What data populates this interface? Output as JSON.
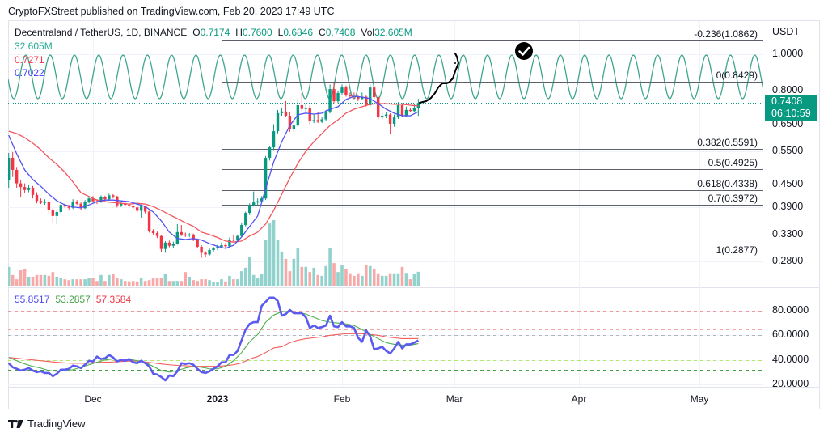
{
  "header": {
    "published": "CryptoFXStreet published on TradingView.com, Feb 20, 2023 17:49 UTC"
  },
  "legend": {
    "title": "Decentraland / TetherUS, 1D, BINANCE",
    "ohlc": [
      {
        "k": "O",
        "v": "0.7174"
      },
      {
        "k": "H",
        "v": "0.7600"
      },
      {
        "k": "L",
        "v": "0.6846"
      },
      {
        "k": "C",
        "v": "0.7408"
      },
      {
        "k": "Vol",
        "v": "32.605M"
      }
    ],
    "volume_value": "32.605M",
    "ma_red_value": "0.7271",
    "ma_blue_value": "0.7022"
  },
  "rsi_legend": {
    "rsi": "55.8517",
    "rsi_ma": "53.2857",
    "rsi_ma_long": "57.3584"
  },
  "price_axis": {
    "unit": "USDT",
    "ticks": [
      "1.0000",
      "0.8000",
      "0.6500",
      "0.5500",
      "0.4500",
      "0.3900",
      "0.3300",
      "0.2800"
    ],
    "last_price": "0.7408",
    "countdown": "06:10:59"
  },
  "rsi_axis": {
    "ticks": [
      "80.0000",
      "60.0000",
      "40.0000",
      "20.0000"
    ]
  },
  "time_axis": {
    "ticks": [
      {
        "label": "Dec",
        "date": "2022-12-01",
        "bold": false
      },
      {
        "label": "2023",
        "date": "2023-01-01",
        "bold": true
      },
      {
        "label": "Feb",
        "date": "2023-02-01",
        "bold": false
      },
      {
        "label": "Mar",
        "date": "2023-03-01",
        "bold": false
      },
      {
        "label": "Apr",
        "date": "2023-04-01",
        "bold": false
      },
      {
        "label": "May",
        "date": "2023-05-01",
        "bold": false
      }
    ]
  },
  "footer": {
    "brand": "TradingView"
  },
  "colors": {
    "up": "#089981",
    "down": "#f23645",
    "volume_up": "#92d2cc",
    "volume_down": "#f7a9a7",
    "ma_blue": "#5252f2",
    "ma_red": "#f2575f",
    "cycle": "#3fa58e",
    "fib": "#5d606b",
    "rsi": "#5b5bf0",
    "rsi_ma": "#4caf50",
    "rsi_ma_long": "#f45b5b",
    "grid": "#f0f3fa",
    "border": "#e0e3eb",
    "drawing": "#000000"
  },
  "chart_data": {
    "type": "candlestick",
    "interval": "1D",
    "x_start": "2022-11-10",
    "candles_ohlc": [
      [
        0.46,
        0.545,
        0.44,
        0.529
      ],
      [
        0.529,
        0.548,
        0.47,
        0.491
      ],
      [
        0.491,
        0.5,
        0.44,
        0.452
      ],
      [
        0.452,
        0.462,
        0.415,
        0.442
      ],
      [
        0.442,
        0.452,
        0.425,
        0.434
      ],
      [
        0.434,
        0.448,
        0.428,
        0.44
      ],
      [
        0.44,
        0.445,
        0.412,
        0.421
      ],
      [
        0.421,
        0.428,
        0.4,
        0.406
      ],
      [
        0.406,
        0.412,
        0.398,
        0.401
      ],
      [
        0.401,
        0.41,
        0.396,
        0.404
      ],
      [
        0.404,
        0.408,
        0.378,
        0.383
      ],
      [
        0.383,
        0.388,
        0.355,
        0.37
      ],
      [
        0.37,
        0.383,
        0.352,
        0.379
      ],
      [
        0.379,
        0.399,
        0.375,
        0.396
      ],
      [
        0.396,
        0.4,
        0.389,
        0.392
      ],
      [
        0.392,
        0.396,
        0.385,
        0.389
      ],
      [
        0.389,
        0.41,
        0.386,
        0.404
      ],
      [
        0.404,
        0.408,
        0.396,
        0.399
      ],
      [
        0.399,
        0.402,
        0.384,
        0.388
      ],
      [
        0.388,
        0.408,
        0.386,
        0.404
      ],
      [
        0.404,
        0.416,
        0.4,
        0.412
      ],
      [
        0.412,
        0.418,
        0.402,
        0.405
      ],
      [
        0.405,
        0.41,
        0.398,
        0.403
      ],
      [
        0.403,
        0.42,
        0.401,
        0.415
      ],
      [
        0.415,
        0.419,
        0.405,
        0.41
      ],
      [
        0.41,
        0.424,
        0.406,
        0.42
      ],
      [
        0.42,
        0.423,
        0.412,
        0.417
      ],
      [
        0.417,
        0.419,
        0.39,
        0.395
      ],
      [
        0.395,
        0.404,
        0.391,
        0.4
      ],
      [
        0.4,
        0.403,
        0.392,
        0.396
      ],
      [
        0.396,
        0.399,
        0.39,
        0.394
      ],
      [
        0.394,
        0.396,
        0.385,
        0.39
      ],
      [
        0.39,
        0.393,
        0.378,
        0.382
      ],
      [
        0.382,
        0.397,
        0.366,
        0.392
      ],
      [
        0.392,
        0.394,
        0.376,
        0.38
      ],
      [
        0.38,
        0.382,
        0.334,
        0.337
      ],
      [
        0.337,
        0.341,
        0.33,
        0.333
      ],
      [
        0.333,
        0.336,
        0.323,
        0.327
      ],
      [
        0.327,
        0.329,
        0.296,
        0.302
      ],
      [
        0.302,
        0.317,
        0.295,
        0.314
      ],
      [
        0.314,
        0.318,
        0.305,
        0.308
      ],
      [
        0.308,
        0.316,
        0.304,
        0.312
      ],
      [
        0.312,
        0.352,
        0.31,
        0.335
      ],
      [
        0.335,
        0.35,
        0.327,
        0.33
      ],
      [
        0.33,
        0.334,
        0.325,
        0.328
      ],
      [
        0.328,
        0.333,
        0.325,
        0.33
      ],
      [
        0.33,
        0.332,
        0.317,
        0.32
      ],
      [
        0.32,
        0.322,
        0.303,
        0.306
      ],
      [
        0.306,
        0.309,
        0.286,
        0.295
      ],
      [
        0.295,
        0.298,
        0.288,
        0.292
      ],
      [
        0.292,
        0.303,
        0.29,
        0.3
      ],
      [
        0.3,
        0.306,
        0.296,
        0.303
      ],
      [
        0.303,
        0.31,
        0.3,
        0.306
      ],
      [
        0.306,
        0.314,
        0.303,
        0.309
      ],
      [
        0.309,
        0.313,
        0.304,
        0.307
      ],
      [
        0.307,
        0.324,
        0.305,
        0.32
      ],
      [
        0.32,
        0.33,
        0.316,
        0.318
      ],
      [
        0.318,
        0.33,
        0.315,
        0.327
      ],
      [
        0.327,
        0.354,
        0.325,
        0.35
      ],
      [
        0.35,
        0.38,
        0.347,
        0.377
      ],
      [
        0.377,
        0.4,
        0.372,
        0.396
      ],
      [
        0.396,
        0.43,
        0.392,
        0.402
      ],
      [
        0.402,
        0.412,
        0.396,
        0.405
      ],
      [
        0.405,
        0.418,
        0.4,
        0.412
      ],
      [
        0.412,
        0.535,
        0.408,
        0.529
      ],
      [
        0.529,
        0.57,
        0.52,
        0.564
      ],
      [
        0.564,
        0.65,
        0.555,
        0.623
      ],
      [
        0.623,
        0.71,
        0.615,
        0.696
      ],
      [
        0.696,
        0.72,
        0.685,
        0.703
      ],
      [
        0.703,
        0.75,
        0.68,
        0.685
      ],
      [
        0.685,
        0.7,
        0.62,
        0.63
      ],
      [
        0.63,
        0.66,
        0.62,
        0.645
      ],
      [
        0.645,
        0.76,
        0.64,
        0.731
      ],
      [
        0.731,
        0.79,
        0.705,
        0.714
      ],
      [
        0.714,
        0.735,
        0.7,
        0.72
      ],
      [
        0.72,
        0.73,
        0.65,
        0.662
      ],
      [
        0.662,
        0.69,
        0.655,
        0.667
      ],
      [
        0.667,
        0.7,
        0.655,
        0.66
      ],
      [
        0.66,
        0.68,
        0.655,
        0.67
      ],
      [
        0.67,
        0.71,
        0.665,
        0.703
      ],
      [
        0.703,
        0.83,
        0.695,
        0.807
      ],
      [
        0.807,
        0.84,
        0.74,
        0.749
      ],
      [
        0.749,
        0.8,
        0.74,
        0.788
      ],
      [
        0.788,
        0.83,
        0.78,
        0.815
      ],
      [
        0.815,
        0.825,
        0.77,
        0.776
      ],
      [
        0.776,
        0.79,
        0.765,
        0.772
      ],
      [
        0.772,
        0.79,
        0.76,
        0.768
      ],
      [
        0.768,
        0.78,
        0.75,
        0.76
      ],
      [
        0.76,
        0.79,
        0.755,
        0.77
      ],
      [
        0.77,
        0.775,
        0.725,
        0.731
      ],
      [
        0.731,
        0.83,
        0.725,
        0.815
      ],
      [
        0.815,
        0.825,
        0.76,
        0.768
      ],
      [
        0.768,
        0.775,
        0.67,
        0.678
      ],
      [
        0.678,
        0.7,
        0.67,
        0.685
      ],
      [
        0.685,
        0.7,
        0.675,
        0.69
      ],
      [
        0.69,
        0.695,
        0.614,
        0.652
      ],
      [
        0.652,
        0.69,
        0.64,
        0.678
      ],
      [
        0.678,
        0.745,
        0.672,
        0.731
      ],
      [
        0.731,
        0.74,
        0.68,
        0.685
      ],
      [
        0.685,
        0.725,
        0.68,
        0.71
      ],
      [
        0.71,
        0.72,
        0.7,
        0.705
      ],
      [
        0.705,
        0.735,
        0.7,
        0.7174
      ],
      [
        0.7174,
        0.76,
        0.6846,
        0.7408
      ]
    ],
    "volume_millions": [
      44,
      25,
      15,
      36,
      38,
      21,
      21,
      25,
      25,
      25,
      23,
      32,
      21,
      19,
      15,
      13,
      15,
      15,
      15,
      15,
      17,
      17,
      11,
      25,
      11,
      25,
      27,
      17,
      15,
      11,
      10,
      11,
      10,
      17,
      11,
      13,
      17,
      17,
      17,
      27,
      11,
      11,
      11,
      11,
      32,
      21,
      13,
      11,
      15,
      15,
      13,
      8,
      8,
      15,
      10,
      23,
      15,
      15,
      34,
      42,
      67,
      25,
      17,
      27,
      108,
      146,
      154,
      108,
      80,
      63,
      34,
      63,
      89,
      44,
      44,
      32,
      42,
      25,
      23,
      46,
      89,
      53,
      32,
      49,
      40,
      29,
      23,
      29,
      23,
      49,
      46,
      40,
      29,
      23,
      23,
      29,
      29,
      29,
      44,
      30,
      15,
      27,
      32.605
    ],
    "moving_averages": [
      {
        "name": "ma_red",
        "step_days": 2,
        "values": [
          0.623,
          0.614,
          0.599,
          0.579,
          0.556,
          0.529,
          0.508,
          0.484,
          0.456,
          0.427,
          0.417,
          0.408,
          0.404,
          0.402,
          0.4,
          0.398,
          0.4,
          0.398,
          0.392,
          0.383,
          0.373,
          0.364,
          0.355,
          0.347,
          0.335,
          0.33,
          0.324,
          0.317,
          0.315,
          0.317,
          0.327,
          0.335,
          0.352,
          0.383,
          0.423,
          0.467,
          0.511,
          0.551,
          0.584,
          0.614,
          0.645,
          0.668,
          0.696,
          0.713,
          0.724,
          0.735,
          0.738,
          0.738,
          0.735,
          0.735,
          0.731,
          0.7271
        ]
      },
      {
        "name": "ma_blue",
        "step_days": 2,
        "values": [
          0.608,
          0.542,
          0.491,
          0.463,
          0.444,
          0.423,
          0.406,
          0.396,
          0.391,
          0.389,
          0.396,
          0.404,
          0.408,
          0.408,
          0.406,
          0.404,
          0.398,
          0.392,
          0.379,
          0.359,
          0.335,
          0.322,
          0.32,
          0.322,
          0.319,
          0.312,
          0.307,
          0.303,
          0.309,
          0.325,
          0.347,
          0.37,
          0.438,
          0.516,
          0.584,
          0.645,
          0.689,
          0.696,
          0.692,
          0.696,
          0.713,
          0.724,
          0.757,
          0.772,
          0.768,
          0.761,
          0.738,
          0.713,
          0.696,
          0.685,
          0.685,
          0.7022
        ]
      }
    ],
    "last_price": 0.7408,
    "fib_start_date": "2023-01-02",
    "fib_levels": [
      {
        "label": "-0.236(1.0862)",
        "price": 1.0862
      },
      {
        "label": "0(0.8429)",
        "price": 0.8429
      },
      {
        "label": "0.382(0.5591)",
        "price": 0.5591
      },
      {
        "label": "0.5(0.4925)",
        "price": 0.4925
      },
      {
        "label": "0.618(0.4338)",
        "price": 0.4338
      },
      {
        "label": "0.7(0.3972)",
        "price": 0.3972
      },
      {
        "label": "1(0.2877)",
        "price": 0.2877
      }
    ],
    "price_scale": "log",
    "rsi": {
      "values": [
        37.3,
        34,
        32.7,
        31.3,
        32,
        33.3,
        31.3,
        30,
        30.7,
        29.3,
        29.3,
        26.7,
        28.7,
        32,
        32,
        32.7,
        35.3,
        34.7,
        33.3,
        36,
        39.3,
        38.7,
        42.7,
        40.7,
        41.3,
        44,
        42,
        38.7,
        40,
        39.3,
        40.7,
        38,
        37.3,
        39.3,
        37.3,
        34.7,
        28.7,
        28,
        26,
        23.3,
        27.3,
        26.7,
        30.7,
        37.3,
        36.7,
        37.3,
        36,
        32.7,
        30,
        29.3,
        30.7,
        32.7,
        34.7,
        38,
        38,
        44,
        44,
        47.3,
        56,
        64.7,
        69.3,
        70.7,
        70.7,
        84,
        87.3,
        90.7,
        90.7,
        88,
        76,
        77.3,
        80.7,
        78,
        78,
        78,
        74.7,
        66,
        68,
        66,
        66.7,
        68,
        76,
        67.3,
        66.7,
        70.7,
        67.3,
        67.3,
        66,
        58,
        54.7,
        64,
        59.3,
        48.7,
        49.3,
        50.7,
        47.3,
        45.3,
        49.3,
        54.7,
        49.3,
        52.7,
        52.7,
        54,
        55.8517
      ],
      "ma_step_days": 2,
      "ma_values": [
        42,
        39.3,
        36.7,
        34.7,
        33.3,
        31.3,
        30.7,
        31.3,
        32,
        34,
        36,
        38,
        40,
        40.7,
        40.7,
        40.7,
        39.3,
        38,
        34.7,
        31.3,
        30,
        31.3,
        33.3,
        34.7,
        34,
        32.7,
        32.7,
        34.7,
        39.3,
        46,
        54.7,
        60.7,
        70.7,
        76.5,
        79.3,
        79.3,
        78.7,
        77.3,
        74.7,
        72,
        70.7,
        70,
        69.3,
        68,
        64.7,
        60.7,
        57.3,
        54,
        52.7,
        52,
        52,
        53.2857
      ],
      "ma_long_values": [
        42,
        41.3,
        40.7,
        40,
        39.3,
        38.7,
        38,
        37.5,
        37.3,
        37.3,
        37.3,
        38,
        38,
        38.3,
        38.7,
        39,
        39,
        38.3,
        37.5,
        36.7,
        36,
        35.5,
        35.2,
        34.7,
        34.7,
        34.7,
        34.7,
        35.3,
        36,
        37.5,
        40.7,
        42.7,
        46,
        49.7,
        50.7,
        54,
        56,
        57.3,
        58,
        58.7,
        60,
        60.7,
        61.3,
        61.3,
        61.3,
        60.7,
        60,
        58.7,
        58,
        57.3,
        57.3,
        57.3584
      ],
      "levels": [
        {
          "value": 80,
          "color": "#ef9a9a"
        },
        {
          "value": 65,
          "color": "#f8a5a5"
        },
        {
          "value": 60,
          "color": "#b2b5be"
        },
        {
          "value": 40,
          "color": "#b4e86a"
        },
        {
          "value": 32,
          "color": "#43a047"
        }
      ]
    }
  }
}
